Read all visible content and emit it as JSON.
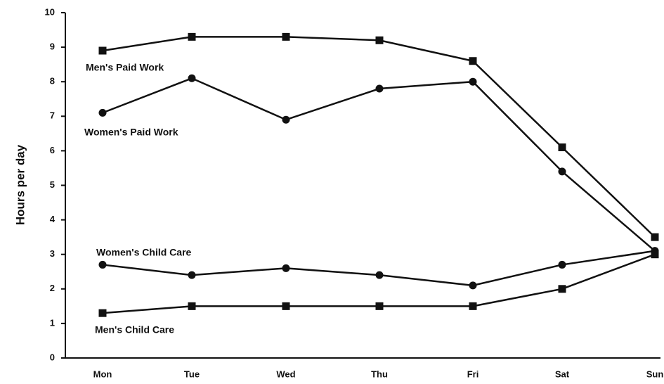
{
  "chart_data": {
    "type": "line",
    "y_label": "Hours per day",
    "categories": [
      "Mon",
      "Tue",
      "Wed",
      "Thu",
      "Fri",
      "Sat",
      "Sun"
    ],
    "series": [
      {
        "name": "Men's Paid Work",
        "color": "#111111",
        "marker": "square",
        "values": [
          8.9,
          9.3,
          9.3,
          9.2,
          8.6,
          6.1,
          3.5
        ]
      },
      {
        "name": "Women's Paid Work",
        "color": "#111111",
        "marker": "circle",
        "values": [
          7.1,
          8.1,
          6.9,
          7.8,
          8.0,
          5.4,
          3.1
        ]
      },
      {
        "name": "Women's Child Care",
        "color": "#111111",
        "marker": "circle",
        "values": [
          2.7,
          2.4,
          2.6,
          2.4,
          2.1,
          2.7,
          3.1
        ]
      },
      {
        "name": "Men's Child Care",
        "color": "#111111",
        "marker": "square",
        "values": [
          1.3,
          1.5,
          1.5,
          1.5,
          1.5,
          2.0,
          3.0
        ]
      }
    ],
    "ylim": [
      0,
      10
    ],
    "yticks": [
      0,
      1,
      2,
      3,
      4,
      5,
      6,
      7,
      8,
      9,
      10
    ],
    "grid": false
  }
}
